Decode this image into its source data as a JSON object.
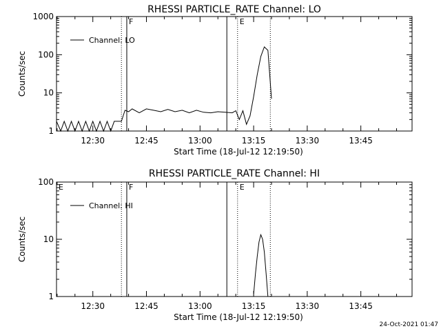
{
  "chart_data": [
    {
      "type": "line",
      "title": "RHESSI PARTICLE_RATE Channel: LO",
      "xlabel": "Start Time (18-Jul-12 12:19:50)",
      "ylabel": "Counts/sec",
      "yscale": "log",
      "ylim": [
        1,
        1000
      ],
      "ytick_labels": [
        "1",
        "10",
        "100",
        "1000"
      ],
      "yticks": [
        1,
        10,
        100,
        1000
      ],
      "xlim": [
        "12:19:50",
        "13:59:20"
      ],
      "xtick_labels": [
        "12:30",
        "12:45",
        "13:00",
        "13:15",
        "13:30",
        "13:45"
      ],
      "grid": false,
      "legend": {
        "placement": "top-left",
        "entries": [
          "Channel: LO"
        ]
      },
      "markers": [
        {
          "time": "12:38:00",
          "style": "dotted",
          "label": ""
        },
        {
          "time": "12:39:30",
          "style": "solid",
          "label": "F"
        },
        {
          "time": "13:07:30",
          "style": "solid",
          "label": ""
        },
        {
          "time": "13:10:30",
          "style": "dotted",
          "label": "E"
        },
        {
          "time": "13:19:40",
          "style": "dotted",
          "label": ""
        }
      ],
      "series": [
        {
          "name": "Channel: LO",
          "x": [
            "12:19:50",
            "12:21:00",
            "12:22:00",
            "12:23:00",
            "12:24:00",
            "12:25:00",
            "12:26:00",
            "12:27:00",
            "12:28:00",
            "12:29:00",
            "12:30:00",
            "12:31:00",
            "12:32:00",
            "12:33:00",
            "12:34:00",
            "12:35:00",
            "12:36:00",
            "12:37:00",
            "12:38:00",
            "12:39:00",
            "12:40:00",
            "12:41:00",
            "12:43:00",
            "12:45:00",
            "12:47:00",
            "12:49:00",
            "12:51:00",
            "12:53:00",
            "12:55:00",
            "12:57:00",
            "12:59:00",
            "13:01:00",
            "13:03:00",
            "13:05:00",
            "13:07:00",
            "13:09:00",
            "13:10:00",
            "13:11:00",
            "13:12:00",
            "13:13:00",
            "13:14:00",
            "13:15:00",
            "13:16:00",
            "13:17:00",
            "13:18:00",
            "13:19:00",
            "13:20:00"
          ],
          "y": [
            1.8,
            1,
            1.8,
            1,
            1.8,
            1,
            1.8,
            1,
            1.8,
            1,
            1.8,
            1,
            1.8,
            1,
            1.8,
            1,
            1.8,
            1.8,
            1.8,
            3.5,
            3.2,
            3.8,
            3.0,
            3.8,
            3.5,
            3.2,
            3.7,
            3.2,
            3.5,
            3.0,
            3.5,
            3.1,
            3.0,
            3.2,
            3.1,
            3.0,
            3.4,
            2.0,
            3.4,
            1.5,
            2.5,
            8,
            30,
            90,
            160,
            130,
            7
          ]
        }
      ]
    },
    {
      "type": "line",
      "title": "RHESSI PARTICLE_RATE Channel: HI",
      "xlabel": "Start Time (18-Jul-12 12:19:50)",
      "ylabel": "Counts/sec",
      "yscale": "log",
      "ylim": [
        1,
        100
      ],
      "ytick_labels": [
        "1",
        "10",
        "100"
      ],
      "yticks": [
        1,
        10,
        100
      ],
      "xlim": [
        "12:19:50",
        "13:59:20"
      ],
      "xtick_labels": [
        "12:30",
        "12:45",
        "13:00",
        "13:15",
        "13:30",
        "13:45"
      ],
      "grid": false,
      "legend": {
        "placement": "top-left",
        "entries": [
          "Channel: HI"
        ]
      },
      "markers": [
        {
          "time": "12:19:50",
          "style": "none",
          "label": "E"
        },
        {
          "time": "12:38:00",
          "style": "dotted",
          "label": ""
        },
        {
          "time": "12:39:30",
          "style": "solid",
          "label": "F"
        },
        {
          "time": "13:07:30",
          "style": "solid",
          "label": ""
        },
        {
          "time": "13:10:30",
          "style": "dotted",
          "label": "E"
        },
        {
          "time": "13:19:40",
          "style": "dotted",
          "label": ""
        }
      ],
      "series": [
        {
          "name": "Channel: HI",
          "x": [
            "13:15:00",
            "13:15:30",
            "13:16:00",
            "13:16:30",
            "13:17:00",
            "13:17:30",
            "13:18:00",
            "13:18:30",
            "13:19:00"
          ],
          "y": [
            1.1,
            2.5,
            5,
            9,
            12,
            10,
            6,
            2.5,
            1
          ]
        }
      ]
    }
  ],
  "footer": {
    "timestamp": "24-Oct-2021 01:47"
  }
}
